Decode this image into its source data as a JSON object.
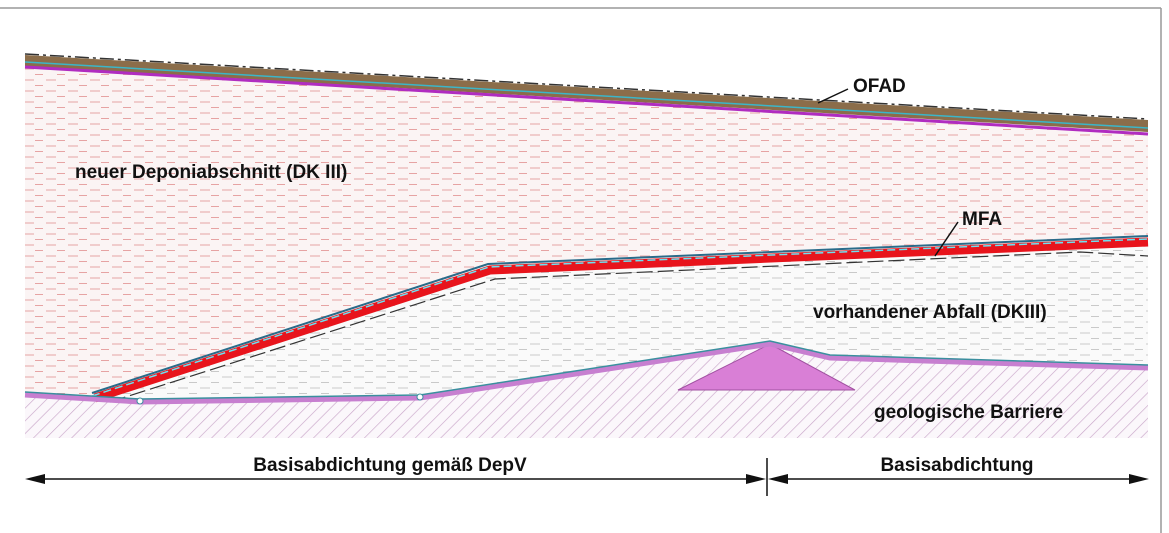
{
  "labels": {
    "ofad": "OFAD",
    "new_section": "neuer Deponiabschnitt (DK III)",
    "mfa": "MFA",
    "existing_waste": "vorhandener Abfall (DKIII)",
    "geological_barrier": "geologische Barriere"
  },
  "dimensions": [
    {
      "label": "Basisabdichtung gemäß DepV"
    },
    {
      "label": "Basisabdichtung"
    }
  ]
}
